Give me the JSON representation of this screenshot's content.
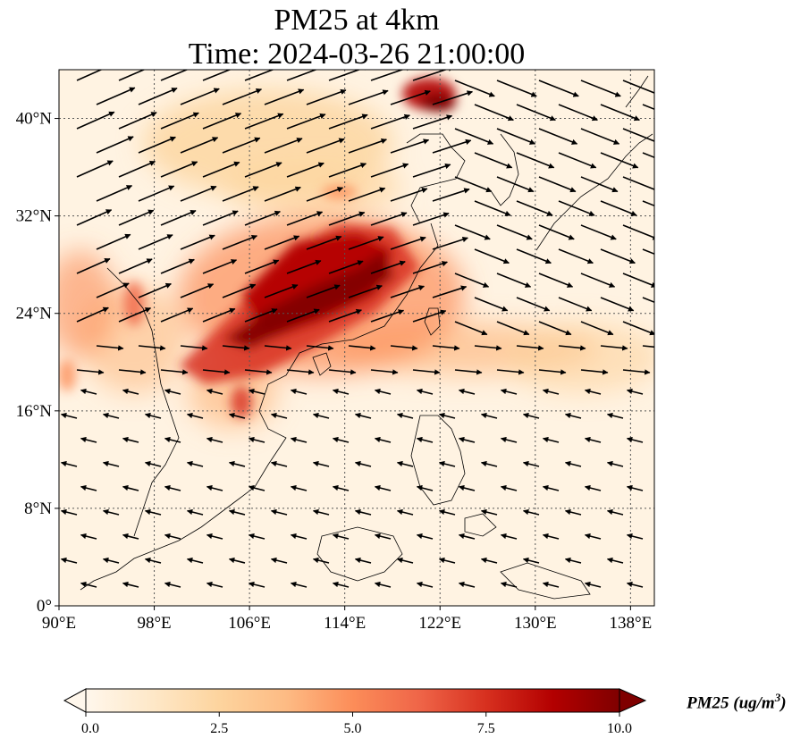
{
  "title": "PM25 at 4km",
  "subtitle": "Time: 2024-03-26 21:00:00",
  "map": {
    "lon_range": [
      90,
      140
    ],
    "lat_range": [
      0,
      44
    ],
    "lon_ticks": [
      "90°E",
      "98°E",
      "106°E",
      "114°E",
      "122°E",
      "130°E",
      "138°E"
    ],
    "lat_ticks": [
      "0°",
      "8°N",
      "16°N",
      "24°N",
      "32°N",
      "40°N"
    ],
    "gridlines": true,
    "colormap": "OrRd",
    "wind_vectors": true
  },
  "colorbar": {
    "label_main": "PM25 (ug/m",
    "label_sup": "3",
    "label_close": ")",
    "ticks": [
      "0.0",
      "2.5",
      "5.0",
      "7.5",
      "10.0"
    ],
    "range": [
      0,
      10
    ],
    "extend": "both",
    "colors": [
      "#fff7ec",
      "#fee8c8",
      "#fdd49e",
      "#fdbb84",
      "#fc8d59",
      "#ef6548",
      "#d7301f",
      "#b30000",
      "#7f0000"
    ]
  }
}
